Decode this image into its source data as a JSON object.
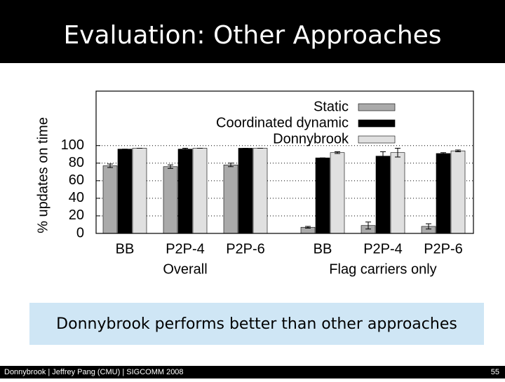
{
  "slide_title": "Evaluation: Other Approaches",
  "caption": "Donnybrook performs better than other approaches",
  "footer": {
    "left": "Donnybrook | Jeffrey Pang (CMU) | SIGCOMM 2008",
    "page": "55"
  },
  "chart_data": {
    "type": "bar",
    "y_label": "% updates on time",
    "categories": [
      "BB",
      "P2P-4",
      "P2P-6",
      "BB",
      "P2P-4",
      "P2P-6"
    ],
    "category_groups": [
      "Overall",
      "Flag carriers only"
    ],
    "series": [
      {
        "name": "Static",
        "color": "#aaaaaa",
        "values": [
          77,
          76,
          78,
          7,
          9,
          8
        ],
        "errors": [
          2,
          2,
          2,
          1,
          4,
          3
        ]
      },
      {
        "name": "Coordinated dynamic",
        "color": "#000000",
        "values": [
          96,
          96,
          97,
          86,
          88,
          91
        ],
        "errors": [
          0,
          1,
          0,
          0,
          5,
          1
        ]
      },
      {
        "name": "Donnybrook",
        "color": "#e0e0e0",
        "values": [
          97,
          97,
          97,
          92,
          92,
          94
        ],
        "errors": [
          0,
          0,
          0,
          1,
          5,
          1
        ]
      }
    ],
    "ylim": [
      0,
      162
    ],
    "yticks": [
      0,
      20,
      40,
      60,
      80,
      100
    ],
    "grid": true,
    "legend": "top-right"
  }
}
